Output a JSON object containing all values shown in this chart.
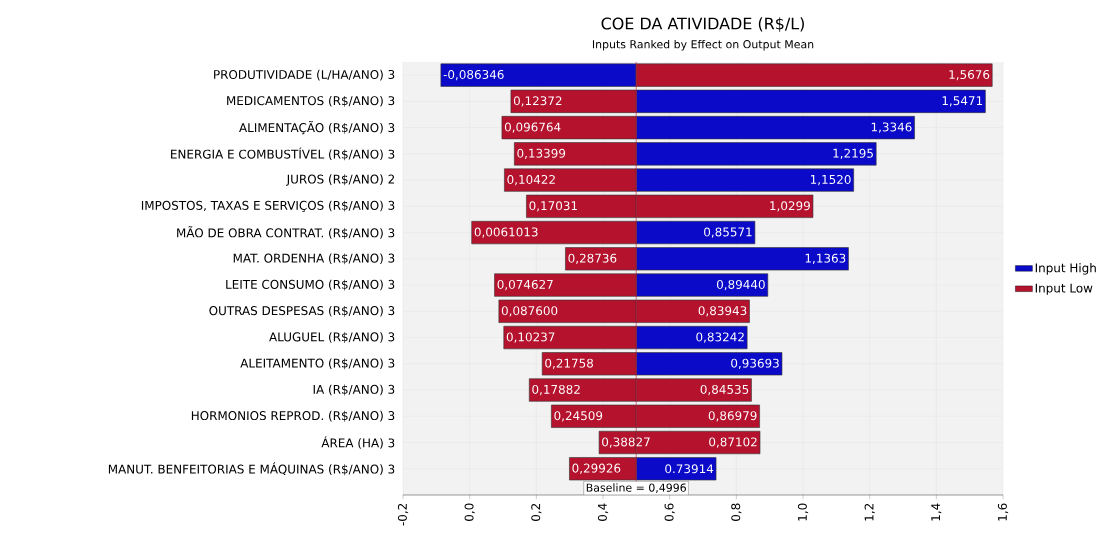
{
  "chart_data": {
    "type": "bar",
    "orientation": "horizontal",
    "title": "COE DA ATIVIDADE (R$/L)",
    "subtitle": "Inputs Ranked by Effect on Output Mean",
    "categories": [
      "PRODUTIVIDADE (L/HA/ANO) 3",
      "MEDICAMENTOS (R$/ANO) 3",
      "ALIMENTAÇÃO (R$/ANO) 3",
      "ENERGIA E COMBUSTÍVEL (R$/ANO) 3",
      "JUROS (R$/ANO) 2",
      "IMPOSTOS, TAXAS E SERVIÇOS (R$/ANO) 3",
      "MÃO DE OBRA CONTRAT. (R$/ANO) 3",
      "MAT. ORDENHA (R$/ANO) 3",
      "LEITE CONSUMO (R$/ANO) 3",
      "OUTRAS DESPESAS (R$/ANO) 3",
      "ALUGUEL (R$/ANO) 3",
      "ALEITAMENTO (R$/ANO) 3",
      "IA (R$/ANO) 3",
      "HORMONIOS REPROD. (R$/ANO) 3",
      "ÁREA (HA) 3",
      "MANUT. BENFEITORIAS E MÁQUINAS (R$/ANO) 3"
    ],
    "series": [
      {
        "name": "Input High",
        "color": "#0a0ac8",
        "base": [
          0.4996,
          0.4996,
          0.4996,
          0.4996,
          0.4996,
          null,
          0.4996,
          0.4996,
          0.4996,
          null,
          0.4996,
          0.4996,
          null,
          null,
          null,
          0.4996
        ],
        "values": [
          -0.585946,
          1.0475,
          0.835,
          0.7199,
          0.6524,
          null,
          0.35611,
          0.6367,
          0.3948,
          null,
          0.33282,
          0.43733,
          null,
          null,
          null,
          0.23954
        ],
        "value_labels": [
          "-0,086346",
          "1,5471",
          "1,3346",
          "1,2195",
          "1,1520",
          null,
          "0,85571",
          "1,1363",
          "0,89440",
          null,
          "0,83242",
          "0,93693",
          null,
          null,
          null,
          "0.73914"
        ]
      },
      {
        "name": "Input Low",
        "color": "#b5122e",
        "base": [
          0.4996,
          0.4996,
          0.4996,
          0.4996,
          0.4996,
          0.4996,
          0.4996,
          0.4996,
          0.4996,
          0.4996,
          0.4996,
          0.4996,
          0.4996,
          0.4996,
          0.4996,
          0.4996
        ],
        "values": [
          1.068,
          -0.37588,
          -0.402836,
          -0.36561,
          -0.39538,
          -0.32929,
          -0.4934987,
          -0.21224,
          -0.424973,
          -0.412,
          -0.39723,
          -0.28202,
          -0.32078,
          -0.25451,
          -0.11133,
          -0.20034
        ],
        "value_labels": [
          "1,5676",
          "0,12372",
          "0,096764",
          "0,13399",
          "0,10422",
          "0,17031",
          "0,0061013",
          "0,28736",
          "0,074627",
          "0,087600",
          "0,10237",
          "0,21758",
          "0,17882",
          "0,24509",
          "0,38827",
          "0,29926"
        ]
      },
      {
        "color": "#b5122e",
        "base": [
          null,
          null,
          null,
          null,
          null,
          0.4996,
          null,
          null,
          null,
          0.4996,
          null,
          null,
          0.4996,
          0.4996,
          0.4996,
          null
        ],
        "values": [
          null,
          null,
          null,
          null,
          null,
          0.5303,
          null,
          null,
          null,
          0.33983,
          null,
          null,
          0.34575,
          0.37019,
          0.37142,
          null
        ],
        "value_labels": [
          null,
          null,
          null,
          null,
          null,
          "1,0299",
          null,
          null,
          null,
          "0,83943",
          null,
          null,
          "0,84535",
          "0,86979",
          "0,87102",
          null
        ]
      }
    ],
    "xlim": [
      -0.2,
      1.6
    ],
    "xticks": [
      {
        "value": -0.2,
        "label": "-0,2"
      },
      {
        "value": 0.0,
        "label": "0,0"
      },
      {
        "value": 0.2,
        "label": "0,2"
      },
      {
        "value": 0.4,
        "label": "0,4"
      },
      {
        "value": 0.6,
        "label": "0,6"
      },
      {
        "value": 0.8,
        "label": "0,8"
      },
      {
        "value": 1.0,
        "label": "1,0"
      },
      {
        "value": 1.2,
        "label": "1,2"
      },
      {
        "value": 1.4,
        "label": "1,4"
      },
      {
        "value": 1.6,
        "label": "1,6"
      }
    ],
    "ref_lines": [
      {
        "axis": "x",
        "value": 0.4996,
        "label": "Baseline = 0,4996",
        "color": "#c0203a"
      }
    ],
    "grid": true,
    "legend": "right"
  }
}
